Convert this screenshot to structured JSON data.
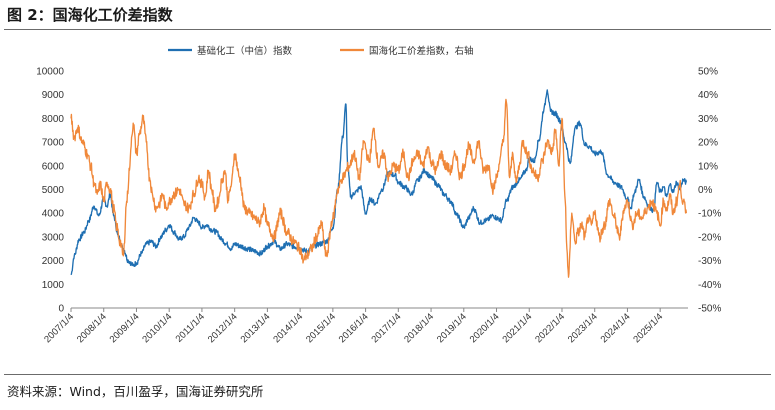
{
  "figure": {
    "title": "图 2：国海化工价差指数",
    "source": "资料来源：Wind，百川盈孚，国海证券研究所"
  },
  "chart_data": {
    "type": "line",
    "title": "",
    "xlabel": "",
    "ylabel_left": "",
    "ylabel_right": "",
    "ylim_left": [
      0,
      10000
    ],
    "yticks_left": [
      0,
      1000,
      2000,
      3000,
      4000,
      5000,
      6000,
      7000,
      8000,
      9000,
      10000
    ],
    "ylim_right": [
      -50,
      50
    ],
    "yticks_right": [
      "-50%",
      "-40%",
      "-30%",
      "-20%",
      "-10%",
      "0%",
      "10%",
      "20%",
      "30%",
      "40%",
      "50%"
    ],
    "yticks_right_values": [
      -50,
      -40,
      -30,
      -20,
      -10,
      0,
      10,
      20,
      30,
      40,
      50
    ],
    "x_range": [
      2007.0,
      2025.85
    ],
    "xticks": [
      "2007/1/4",
      "2008/1/4",
      "2009/1/4",
      "2010/1/4",
      "2011/1/4",
      "2012/1/4",
      "2013/1/4",
      "2014/1/4",
      "2015/1/4",
      "2016/1/4",
      "2017/1/4",
      "2018/1/4",
      "2019/1/4",
      "2020/1/4",
      "2021/1/4",
      "2022/1/4",
      "2023/1/4",
      "2024/1/4",
      "2025/1/4"
    ],
    "xticks_values": [
      2007,
      2008,
      2009,
      2010,
      2011,
      2012,
      2013,
      2014,
      2015,
      2016,
      2017,
      2018,
      2019,
      2020,
      2021,
      2022,
      2023,
      2024,
      2025
    ],
    "legend_position": "top-center",
    "series": [
      {
        "name": "基础化工（中信）指数",
        "axis": "left",
        "color": "#1f6fb2",
        "x": [
          2007.0,
          2007.1,
          2007.25,
          2007.4,
          2007.55,
          2007.7,
          2007.85,
          2008.0,
          2008.1,
          2008.2,
          2008.3,
          2008.45,
          2008.6,
          2008.75,
          2008.9,
          2009.0,
          2009.15,
          2009.3,
          2009.45,
          2009.6,
          2009.75,
          2009.9,
          2010.0,
          2010.15,
          2010.3,
          2010.45,
          2010.6,
          2010.75,
          2010.9,
          2011.0,
          2011.15,
          2011.3,
          2011.45,
          2011.6,
          2011.75,
          2011.9,
          2012.0,
          2012.2,
          2012.4,
          2012.6,
          2012.8,
          2013.0,
          2013.2,
          2013.4,
          2013.6,
          2013.8,
          2014.0,
          2014.2,
          2014.4,
          2014.6,
          2014.8,
          2015.0,
          2015.15,
          2015.3,
          2015.4,
          2015.45,
          2015.55,
          2015.7,
          2015.85,
          2016.0,
          2016.15,
          2016.3,
          2016.5,
          2016.7,
          2016.9,
          2017.0,
          2017.2,
          2017.4,
          2017.6,
          2017.8,
          2018.0,
          2018.2,
          2018.4,
          2018.6,
          2018.8,
          2019.0,
          2019.15,
          2019.3,
          2019.5,
          2019.7,
          2019.9,
          2020.0,
          2020.15,
          2020.3,
          2020.5,
          2020.7,
          2020.9,
          2021.0,
          2021.15,
          2021.3,
          2021.45,
          2021.55,
          2021.65,
          2021.8,
          2021.95,
          2022.1,
          2022.25,
          2022.4,
          2022.55,
          2022.7,
          2022.85,
          2023.0,
          2023.2,
          2023.4,
          2023.6,
          2023.8,
          2024.0,
          2024.1,
          2024.2,
          2024.35,
          2024.5,
          2024.65,
          2024.8,
          2024.9,
          2025.0,
          2025.1,
          2025.2,
          2025.3,
          2025.4,
          2025.5,
          2025.6,
          2025.7,
          2025.8
        ],
        "values": [
          1400,
          2200,
          2900,
          3200,
          3700,
          4300,
          3900,
          4600,
          4300,
          4800,
          3900,
          3000,
          2500,
          2000,
          1800,
          1900,
          2300,
          2700,
          2800,
          2600,
          3000,
          3300,
          3500,
          3200,
          2900,
          3000,
          3400,
          3800,
          3600,
          3400,
          3500,
          3300,
          3200,
          2900,
          2700,
          2500,
          2700,
          2600,
          2500,
          2400,
          2300,
          2600,
          2800,
          2500,
          2700,
          2600,
          2500,
          2400,
          2600,
          2700,
          2800,
          3400,
          5000,
          7200,
          8600,
          6000,
          4700,
          4900,
          5100,
          4000,
          4600,
          4400,
          5000,
          5700,
          5600,
          5300,
          5100,
          4800,
          5400,
          5800,
          5500,
          5200,
          4800,
          4500,
          3900,
          3400,
          3800,
          4200,
          3600,
          3700,
          3900,
          3800,
          3700,
          4500,
          5100,
          5400,
          5800,
          6300,
          6200,
          7100,
          8400,
          9200,
          8300,
          8200,
          7900,
          7000,
          6100,
          7600,
          7800,
          6900,
          6800,
          6500,
          6600,
          5600,
          5300,
          5100,
          4600,
          4200,
          4800,
          5400,
          4700,
          4300,
          4100,
          5300,
          4900,
          5100,
          4700,
          5200,
          4900,
          5300,
          5000,
          5400,
          5300
        ]
      },
      {
        "name": "国海化工价差指数，右轴",
        "axis": "right",
        "color": "#f0883a",
        "x": [
          2007.0,
          2007.1,
          2007.2,
          2007.35,
          2007.5,
          2007.6,
          2007.7,
          2007.8,
          2007.9,
          2008.0,
          2008.1,
          2008.2,
          2008.3,
          2008.4,
          2008.5,
          2008.6,
          2008.7,
          2008.8,
          2008.85,
          2008.9,
          2009.0,
          2009.1,
          2009.2,
          2009.3,
          2009.4,
          2009.5,
          2009.6,
          2009.7,
          2009.8,
          2009.9,
          2010.0,
          2010.15,
          2010.3,
          2010.45,
          2010.6,
          2010.75,
          2010.9,
          2011.0,
          2011.1,
          2011.2,
          2011.3,
          2011.4,
          2011.5,
          2011.6,
          2011.7,
          2011.8,
          2011.9,
          2012.0,
          2012.15,
          2012.3,
          2012.45,
          2012.6,
          2012.75,
          2012.9,
          2013.0,
          2013.2,
          2013.4,
          2013.6,
          2013.8,
          2014.0,
          2014.1,
          2014.2,
          2014.35,
          2014.5,
          2014.65,
          2014.8,
          2015.0,
          2015.15,
          2015.3,
          2015.5,
          2015.65,
          2015.8,
          2015.95,
          2016.1,
          2016.25,
          2016.4,
          2016.55,
          2016.7,
          2016.85,
          2017.0,
          2017.15,
          2017.3,
          2017.45,
          2017.6,
          2017.75,
          2017.9,
          2018.0,
          2018.15,
          2018.3,
          2018.45,
          2018.6,
          2018.75,
          2018.9,
          2019.0,
          2019.15,
          2019.3,
          2019.45,
          2019.6,
          2019.75,
          2019.9,
          2020.0,
          2020.1,
          2020.2,
          2020.3,
          2020.4,
          2020.5,
          2020.6,
          2020.7,
          2020.8,
          2020.95,
          2021.1,
          2021.25,
          2021.4,
          2021.55,
          2021.7,
          2021.8,
          2021.9,
          2022.0,
          2022.1,
          2022.15,
          2022.2,
          2022.3,
          2022.4,
          2022.5,
          2022.6,
          2022.7,
          2022.8,
          2022.9,
          2023.0,
          2023.15,
          2023.3,
          2023.45,
          2023.6,
          2023.75,
          2023.9,
          2024.0,
          2024.15,
          2024.3,
          2024.45,
          2024.6,
          2024.75,
          2024.9,
          2025.0,
          2025.1,
          2025.2,
          2025.3,
          2025.4,
          2025.5,
          2025.6,
          2025.7,
          2025.8
        ],
        "values": [
          30,
          22,
          26,
          20,
          15,
          10,
          3,
          -2,
          2,
          -5,
          3,
          0,
          -8,
          -16,
          -22,
          -28,
          -5,
          10,
          22,
          28,
          15,
          24,
          30,
          20,
          5,
          -3,
          -8,
          -6,
          -2,
          -8,
          -5,
          -2,
          0,
          -6,
          -8,
          -2,
          5,
          2,
          -3,
          8,
          0,
          -8,
          -5,
          3,
          8,
          -4,
          2,
          15,
          5,
          -8,
          -10,
          -12,
          -14,
          -8,
          -15,
          -20,
          -10,
          -18,
          -22,
          -25,
          -30,
          -28,
          -25,
          -20,
          -15,
          -28,
          -12,
          0,
          5,
          10,
          15,
          5,
          20,
          12,
          25,
          10,
          15,
          5,
          10,
          8,
          15,
          5,
          12,
          15,
          10,
          18,
          12,
          8,
          15,
          10,
          8,
          15,
          5,
          10,
          18,
          12,
          20,
          8,
          10,
          0,
          5,
          12,
          20,
          37,
          5,
          15,
          3,
          10,
          20,
          15,
          8,
          5,
          12,
          20,
          16,
          25,
          10,
          30,
          -5,
          -25,
          -37,
          -10,
          -22,
          -18,
          -15,
          -20,
          -12,
          -15,
          -10,
          -20,
          -15,
          -5,
          -12,
          -20,
          -8,
          -5,
          -15,
          -10,
          -12,
          -8,
          -5,
          -10,
          -15,
          -5,
          -8,
          -3,
          -10,
          -5,
          2,
          -5,
          -10
        ]
      }
    ]
  }
}
